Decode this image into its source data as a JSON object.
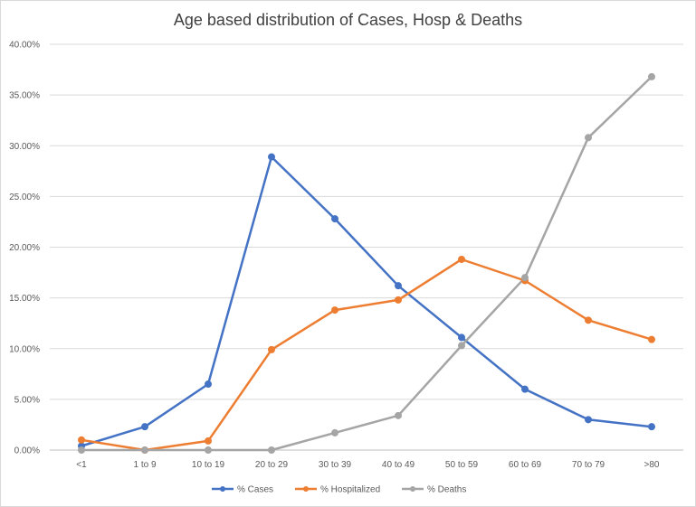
{
  "chart_data": {
    "type": "line",
    "title": "Age based distribution of Cases, Hosp & Deaths",
    "xlabel": "",
    "ylabel": "",
    "categories": [
      "<1",
      "1 to 9",
      "10 to 19",
      "20 to 29",
      "30 to 39",
      "40 to 49",
      "50 to 59",
      "60 to 69",
      "70 to 79",
      ">80"
    ],
    "ylim": [
      0,
      0.4
    ],
    "yticks": [
      "0.00%",
      "5.00%",
      "10.00%",
      "15.00%",
      "20.00%",
      "25.00%",
      "30.00%",
      "35.00%",
      "40.00%"
    ],
    "grid": true,
    "legend_position": "bottom",
    "series": [
      {
        "name": "% Cases",
        "color": "#4472c4",
        "values": [
          0.004,
          0.023,
          0.065,
          0.289,
          0.228,
          0.162,
          0.111,
          0.06,
          0.03,
          0.023
        ]
      },
      {
        "name": "% Hospitalized",
        "color": "#ed7d31",
        "values": [
          0.01,
          0.0,
          0.009,
          0.099,
          0.138,
          0.148,
          0.188,
          0.167,
          0.128,
          0.109
        ]
      },
      {
        "name": "% Deaths",
        "color": "#a5a5a5",
        "values": [
          0.0,
          0.0,
          0.0,
          0.0,
          0.017,
          0.034,
          0.103,
          0.17,
          0.308,
          0.368
        ]
      }
    ]
  }
}
